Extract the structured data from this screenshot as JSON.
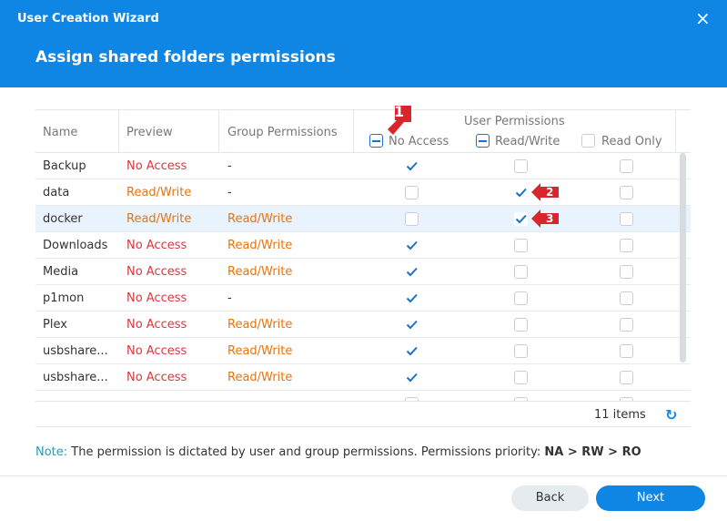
{
  "header": {
    "app_title": "User Creation Wizard",
    "step_title": "Assign shared folders permissions"
  },
  "table": {
    "columns": [
      "Name",
      "Preview",
      "Group Permissions"
    ],
    "user_permissions": {
      "title": "User Permissions",
      "options": [
        "No Access",
        "Read/Write",
        "Read Only"
      ]
    },
    "rows": [
      {
        "name": "Backup",
        "preview": "No Access",
        "group": "-",
        "checked": [
          true,
          false,
          false
        ]
      },
      {
        "name": "data",
        "preview": "Read/Write",
        "group": "-",
        "checked": [
          false,
          true,
          false
        ]
      },
      {
        "name": "docker",
        "preview": "Read/Write",
        "group": "Read/Write",
        "checked": [
          false,
          true,
          false
        ],
        "selected": true
      },
      {
        "name": "Downloads",
        "preview": "No Access",
        "group": "Read/Write",
        "checked": [
          true,
          false,
          false
        ]
      },
      {
        "name": "Media",
        "preview": "No Access",
        "group": "Read/Write",
        "checked": [
          true,
          false,
          false
        ]
      },
      {
        "name": "p1mon",
        "preview": "No Access",
        "group": "-",
        "checked": [
          true,
          false,
          false
        ]
      },
      {
        "name": "Plex",
        "preview": "No Access",
        "group": "Read/Write",
        "checked": [
          true,
          false,
          false
        ]
      },
      {
        "name": "usbshare...",
        "preview": "No Access",
        "group": "Read/Write",
        "checked": [
          true,
          false,
          false
        ]
      },
      {
        "name": "usbshare...",
        "preview": "No Access",
        "group": "Read/Write",
        "checked": [
          true,
          false,
          false
        ]
      }
    ],
    "item_count": "11 items"
  },
  "annotations": [
    "1",
    "2",
    "3"
  ],
  "note": {
    "label": "Note:",
    "text": "The permission is dictated by user and group permissions. Permissions priority:",
    "priority": "NA > RW > RO"
  },
  "buttons": {
    "back": "Back",
    "next": "Next"
  }
}
